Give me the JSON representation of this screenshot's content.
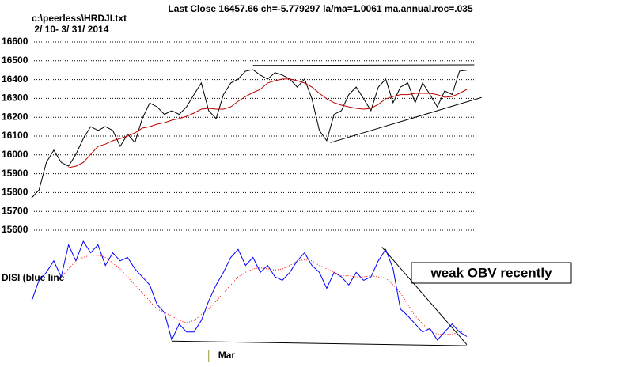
{
  "chart_data": [
    {
      "type": "line",
      "title": "Last Close 16457.66 ch=-5.779297  la/ma=1.0061 ma.annual.roc=.035",
      "source": "c:\\peerless\\HRDJI.txt",
      "date_range": " 2/ 10- 3/ 31/ 2014",
      "ylim": [
        15600,
        16600
      ],
      "yticks": [
        15600,
        15700,
        15800,
        15900,
        16000,
        16100,
        16200,
        16300,
        16400,
        16500,
        16600
      ],
      "grid": true,
      "series": [
        {
          "color": "#000000",
          "values": [
            15772,
            15814,
            15960,
            16025,
            15960,
            15940,
            16003,
            16087,
            16150,
            16130,
            16150,
            16130,
            16045,
            16110,
            16065,
            16193,
            16275,
            16255,
            16215,
            16235,
            16215,
            16255,
            16320,
            16382,
            16235,
            16193,
            16320,
            16382,
            16403,
            16445,
            16453,
            16424,
            16403,
            16437,
            16424,
            16403,
            16360,
            16403,
            16298,
            16130,
            16075,
            16215,
            16235,
            16320,
            16360,
            16298,
            16235,
            16360,
            16403,
            16277,
            16360,
            16382,
            16277,
            16382,
            16320,
            16255,
            16340,
            16320,
            16445,
            16450
          ]
        },
        {
          "color": "#c00000",
          "values": [
            null,
            null,
            null,
            null,
            null,
            15932,
            15940,
            15960,
            16003,
            16045,
            16057,
            16075,
            16087,
            16100,
            16117,
            16142,
            16150,
            16163,
            16171,
            16184,
            16193,
            16205,
            16222,
            16243,
            16247,
            16243,
            16243,
            16255,
            16285,
            16310,
            16331,
            16348,
            16382,
            16394,
            16403,
            16403,
            16394,
            16382,
            16360,
            16327,
            16298,
            16277,
            16264,
            16255,
            16247,
            16243,
            16247,
            16268,
            16298,
            16310,
            16320,
            16320,
            16327,
            16327,
            16327,
            16320,
            16306,
            16310,
            16327,
            16348
          ]
        }
      ],
      "trendlines": [
        {
          "x": [
            30,
            60
          ],
          "y": [
            16475,
            16478
          ]
        },
        {
          "x": [
            40.5,
            61
          ],
          "y": [
            16065,
            16305
          ]
        }
      ]
    },
    {
      "type": "line",
      "ylabel": "DISI (blue line",
      "annotation": "weak OBV recently",
      "ylim": [
        0,
        100
      ],
      "categories": [
        null,
        null,
        null,
        null,
        null,
        null,
        null,
        null,
        null,
        null,
        null,
        null,
        null,
        null,
        null,
        null,
        null,
        null,
        null,
        null,
        null,
        null,
        null,
        null,
        "Mar",
        null,
        null,
        null,
        null,
        null,
        null,
        null,
        null,
        null,
        null,
        null,
        null,
        null,
        null,
        null,
        null,
        null,
        null,
        null,
        null,
        null,
        null,
        null,
        null,
        null,
        null,
        null,
        null,
        null,
        null,
        null,
        null,
        null,
        null,
        null
      ],
      "series": [
        {
          "color": "#0000ff",
          "values": [
            41,
            59,
            66,
            76,
            62,
            90,
            76,
            93,
            83,
            90,
            72,
            83,
            76,
            79,
            69,
            62,
            55,
            38,
            31,
            7,
            21,
            14,
            14,
            24,
            41,
            55,
            66,
            79,
            86,
            72,
            79,
            66,
            72,
            62,
            59,
            66,
            76,
            83,
            72,
            66,
            52,
            66,
            62,
            55,
            66,
            59,
            62,
            76,
            86,
            69,
            34,
            28,
            21,
            14,
            17,
            7,
            14,
            21,
            14,
            10
          ]
        },
        {
          "color": "#ff0000",
          "line_style": "dotted",
          "values": [
            null,
            null,
            null,
            null,
            62,
            69,
            76,
            79,
            81,
            81,
            79,
            74,
            69,
            62,
            55,
            48,
            41,
            34,
            31,
            28,
            24,
            22,
            24,
            29,
            34,
            41,
            48,
            55,
            62,
            66,
            69,
            70,
            69,
            68,
            69,
            72,
            76,
            77,
            76,
            72,
            69,
            66,
            63,
            63,
            62,
            62,
            63,
            62,
            61,
            55,
            48,
            38,
            28,
            21,
            15,
            12,
            12,
            12,
            14,
            15
          ]
        }
      ],
      "trendlines": [
        {
          "x": [
            47.5,
            59
          ],
          "y": [
            88,
            3
          ]
        },
        {
          "x": [
            19,
            59
          ],
          "y": [
            6,
            2
          ]
        }
      ]
    }
  ]
}
